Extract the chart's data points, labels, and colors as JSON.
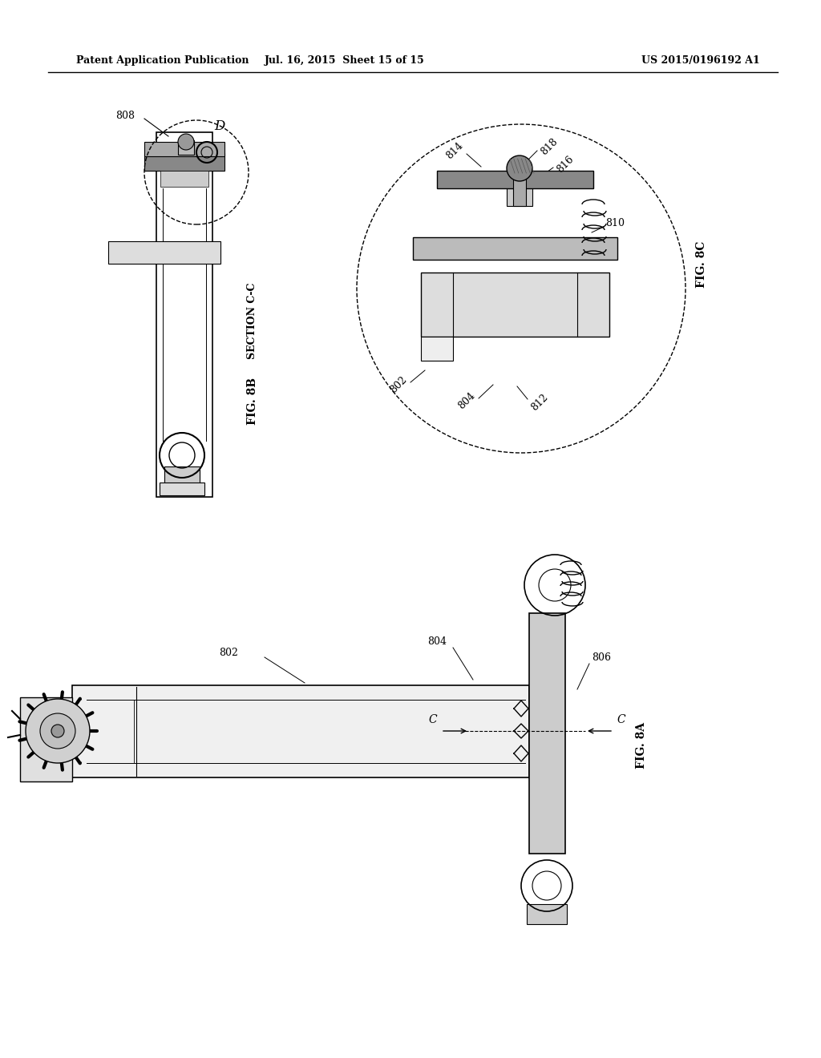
{
  "title_left": "Patent Application Publication",
  "title_mid": "Jul. 16, 2015  Sheet 15 of 15",
  "title_right": "US 2015/0196192 A1",
  "bg_color": "#ffffff",
  "line_color": "#000000",
  "fig8b_label": "FIG. 8B",
  "fig8c_label": "FIG. 8C",
  "fig8a_label": "FIG. 8A",
  "section_cc": "SECTION C-C"
}
